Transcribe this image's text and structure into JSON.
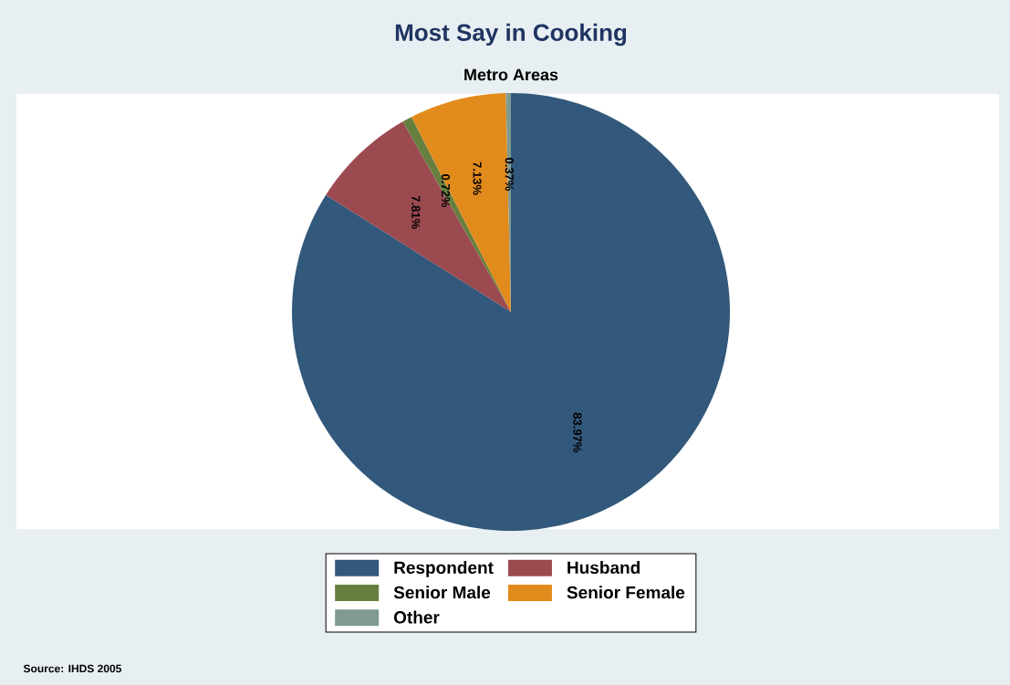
{
  "chart_data": {
    "type": "pie",
    "title": "Most Say in Cooking",
    "subtitle": "Metro Areas",
    "categories": [
      "Respondent",
      "Husband",
      "Senior Male",
      "Senior Female",
      "Other"
    ],
    "values": [
      83.97,
      7.81,
      0.72,
      7.13,
      0.37
    ],
    "value_labels": [
      "83.97%",
      "7.81%",
      "0.72%",
      "7.13%",
      "0.37%"
    ],
    "colors": [
      "#32587b",
      "#9b4a50",
      "#677f3e",
      "#e28b1d",
      "#7f9a92"
    ],
    "legend": "bottom",
    "annotations": [
      "Source: IHDS 2005"
    ]
  }
}
